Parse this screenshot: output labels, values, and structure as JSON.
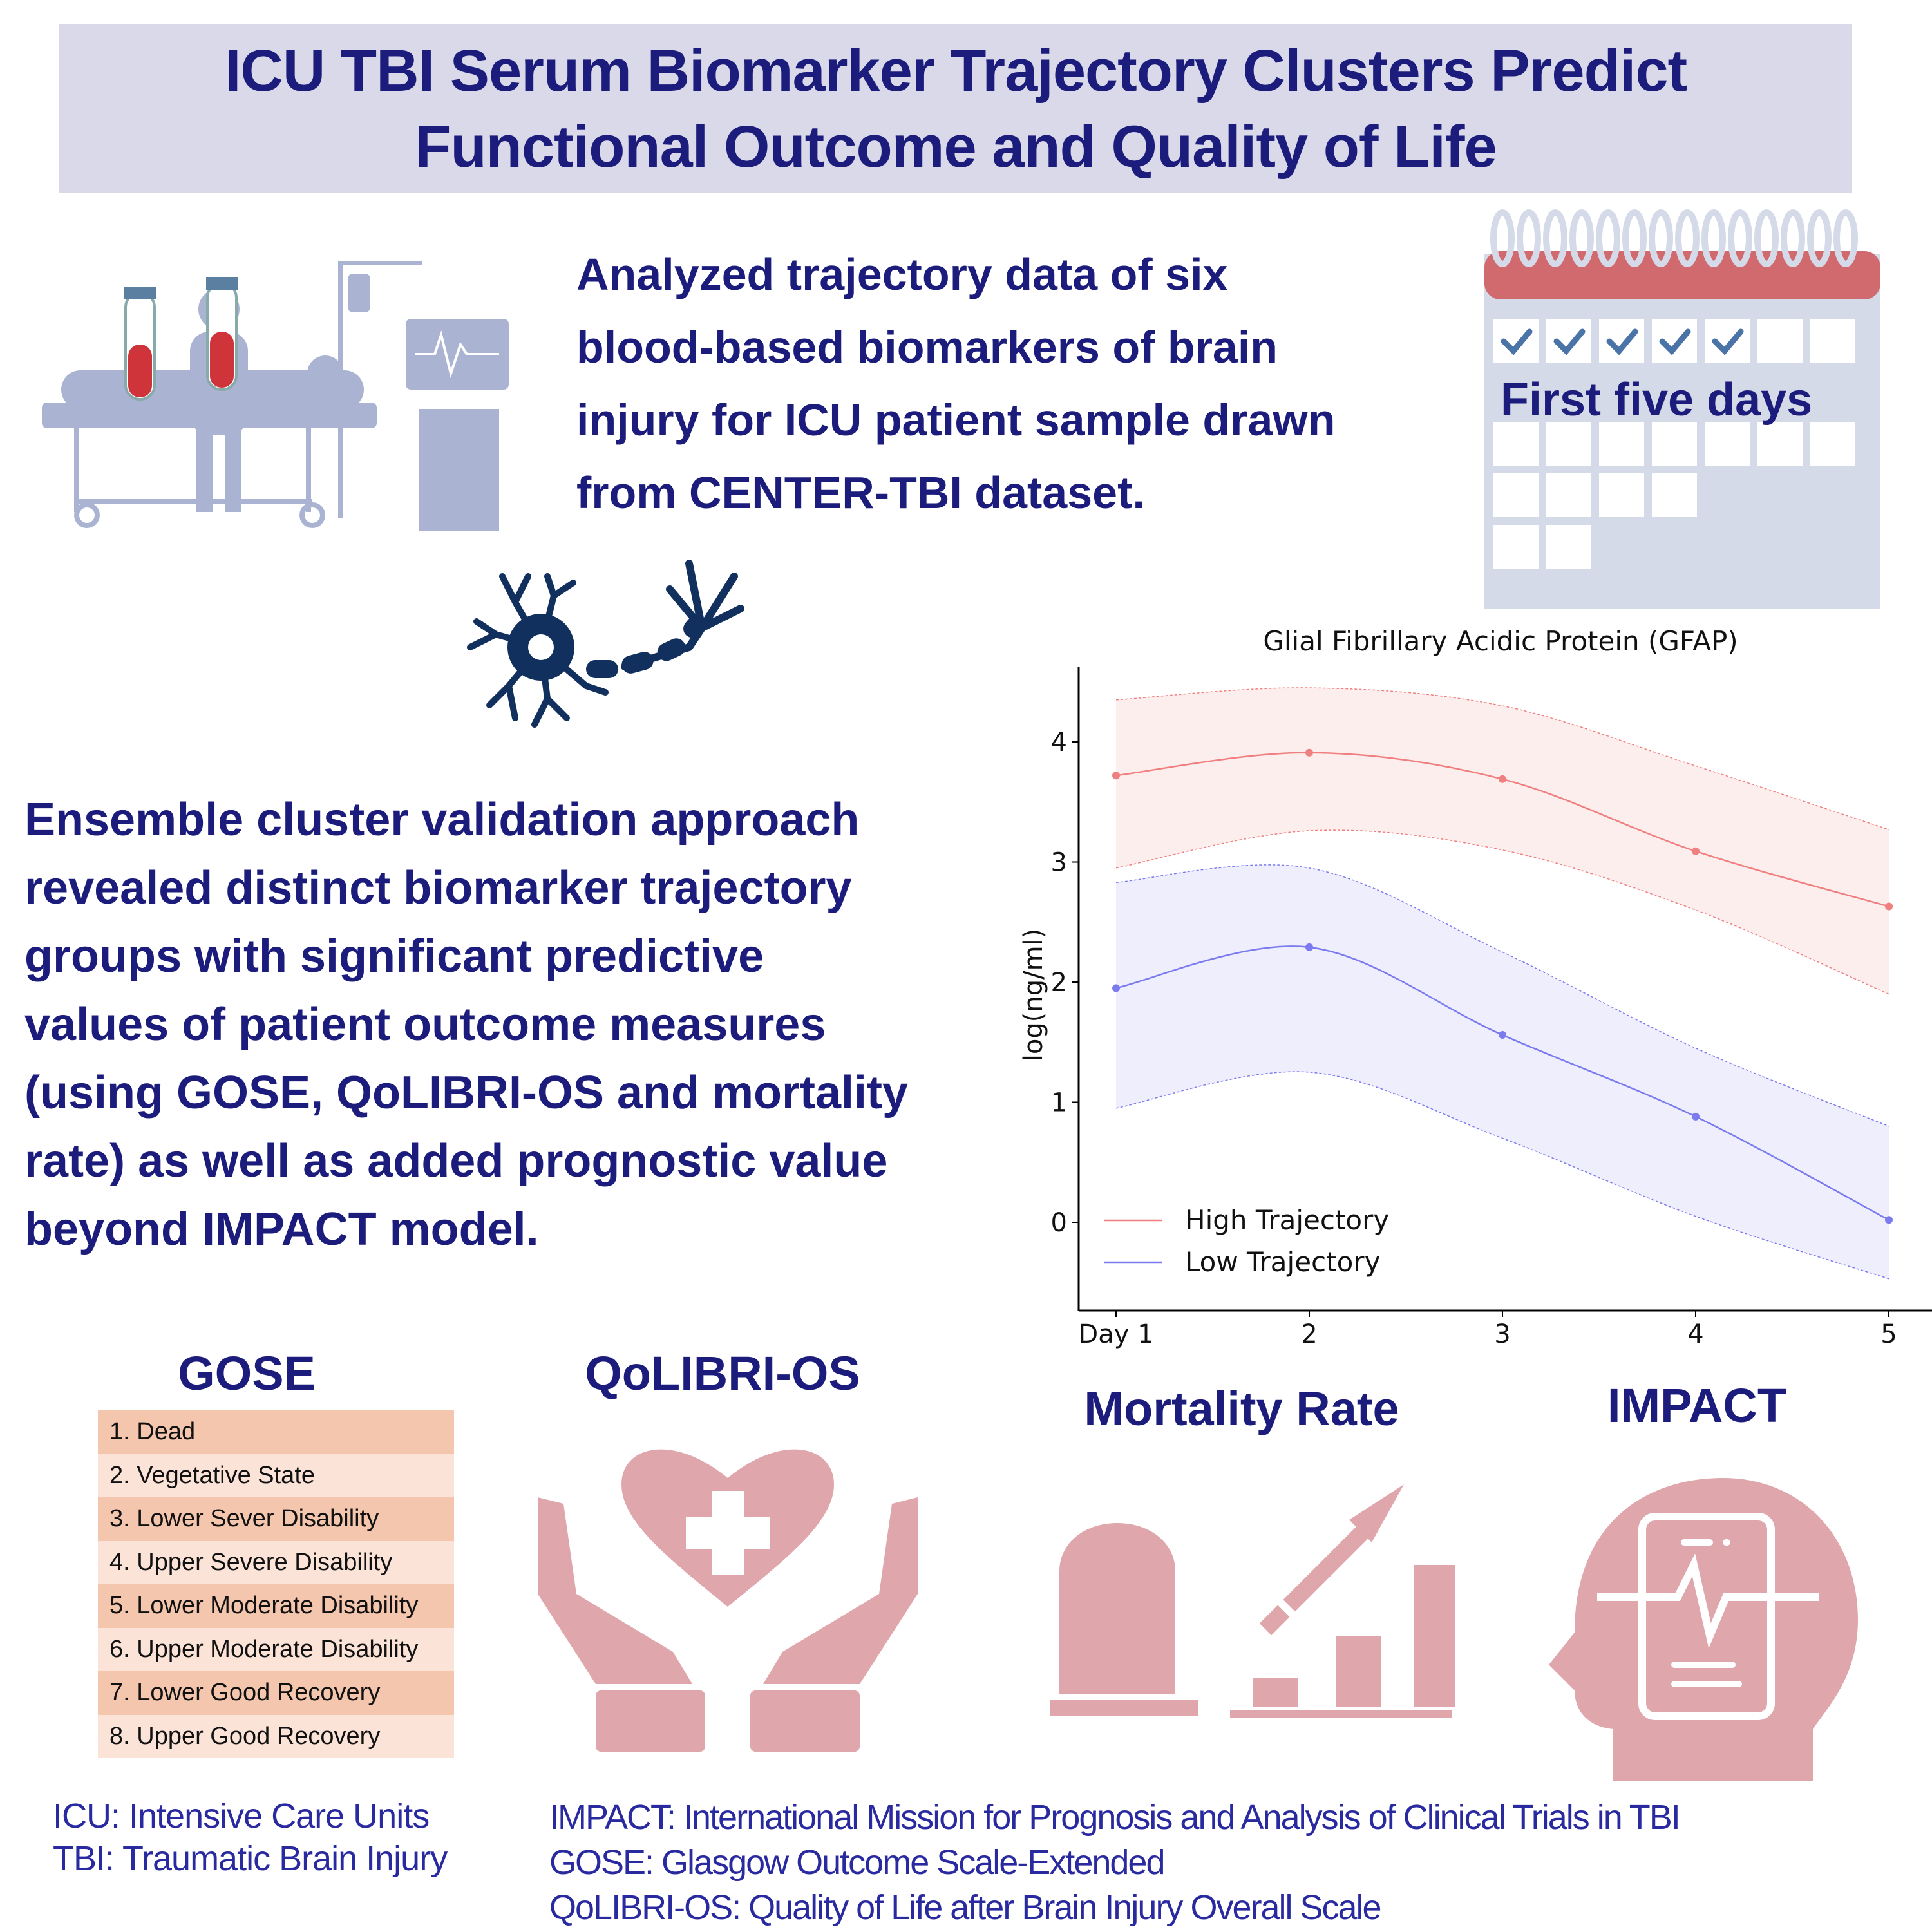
{
  "title": {
    "line1": "ICU TBI Serum Biomarker Trajectory Clusters Predict",
    "line2": "Functional Outcome and Quality of Life"
  },
  "top_text": [
    "Analyzed trajectory data of six",
    "blood-based biomarkers of brain",
    "injury for ICU patient sample drawn",
    "from CENTER-TBI dataset."
  ],
  "calendar": {
    "label": "First five days",
    "checked_days": 5
  },
  "mid_text": [
    "Ensemble cluster validation approach",
    "revealed distinct biomarker trajectory",
    "groups with significant predictive",
    "values of patient outcome measures",
    "(using GOSE, QoLIBRI-OS and mortality",
    "rate) as well as added prognostic value",
    "beyond IMPACT model."
  ],
  "sections": {
    "gose": "GOSE",
    "qolibri": "QoLIBRI-OS",
    "mortality": "Mortality Rate",
    "impact": "IMPACT"
  },
  "gose_items": [
    "1. Dead",
    "2. Vegetative State",
    "3. Lower Sever Disability",
    "4. Upper Severe Disability",
    "5. Lower Moderate Disability",
    "6. Upper Moderate Disability",
    "7. Lower Good Recovery",
    "8. Upper Good Recovery"
  ],
  "footer_left": [
    "ICU:  Intensive Care Units",
    "TBI:  Traumatic Brain Injury"
  ],
  "footer_right": [
    "IMPACT:  International Mission for Prognosis and Analysis of Clinical Trials in TBI",
    "GOSE: Glasgow Outcome Scale-Extended",
    "QoLIBRI-OS: Quality of Life after Brain Injury Overall Scale"
  ],
  "colors": {
    "title_text": "#1c1c7c",
    "banner": "#d9d9ea",
    "icon_pink": "#dfa6ab",
    "high": "#f07f7f",
    "low": "#7b7bef"
  },
  "chart_data": {
    "type": "line",
    "title": "Glial Fibrillary Acidic Protein (GFAP)",
    "xlabel": "",
    "ylabel": "log(ng/ml)",
    "x": [
      1,
      2,
      3,
      4,
      5
    ],
    "xtick_labels": [
      "Day 1",
      "2",
      "3",
      "4",
      "5"
    ],
    "yticks": [
      0,
      1,
      2,
      3,
      4
    ],
    "ylim": [
      -0.7,
      4.75
    ],
    "legend": "lower-left",
    "grid": false,
    "series": [
      {
        "name": "High Trajectory",
        "color": "#f07f7f",
        "values": [
          3.72,
          3.91,
          3.69,
          3.09,
          2.63
        ],
        "upper": [
          4.35,
          4.45,
          4.3,
          3.8,
          3.27
        ],
        "lower": [
          2.95,
          3.26,
          3.1,
          2.6,
          1.9
        ]
      },
      {
        "name": "Low Trajectory",
        "color": "#7b7bef",
        "values": [
          1.95,
          2.29,
          1.56,
          0.88,
          0.02
        ],
        "upper": [
          2.83,
          2.95,
          2.25,
          1.45,
          0.8
        ],
        "lower": [
          0.95,
          1.25,
          0.7,
          0.05,
          -0.47
        ]
      }
    ]
  }
}
